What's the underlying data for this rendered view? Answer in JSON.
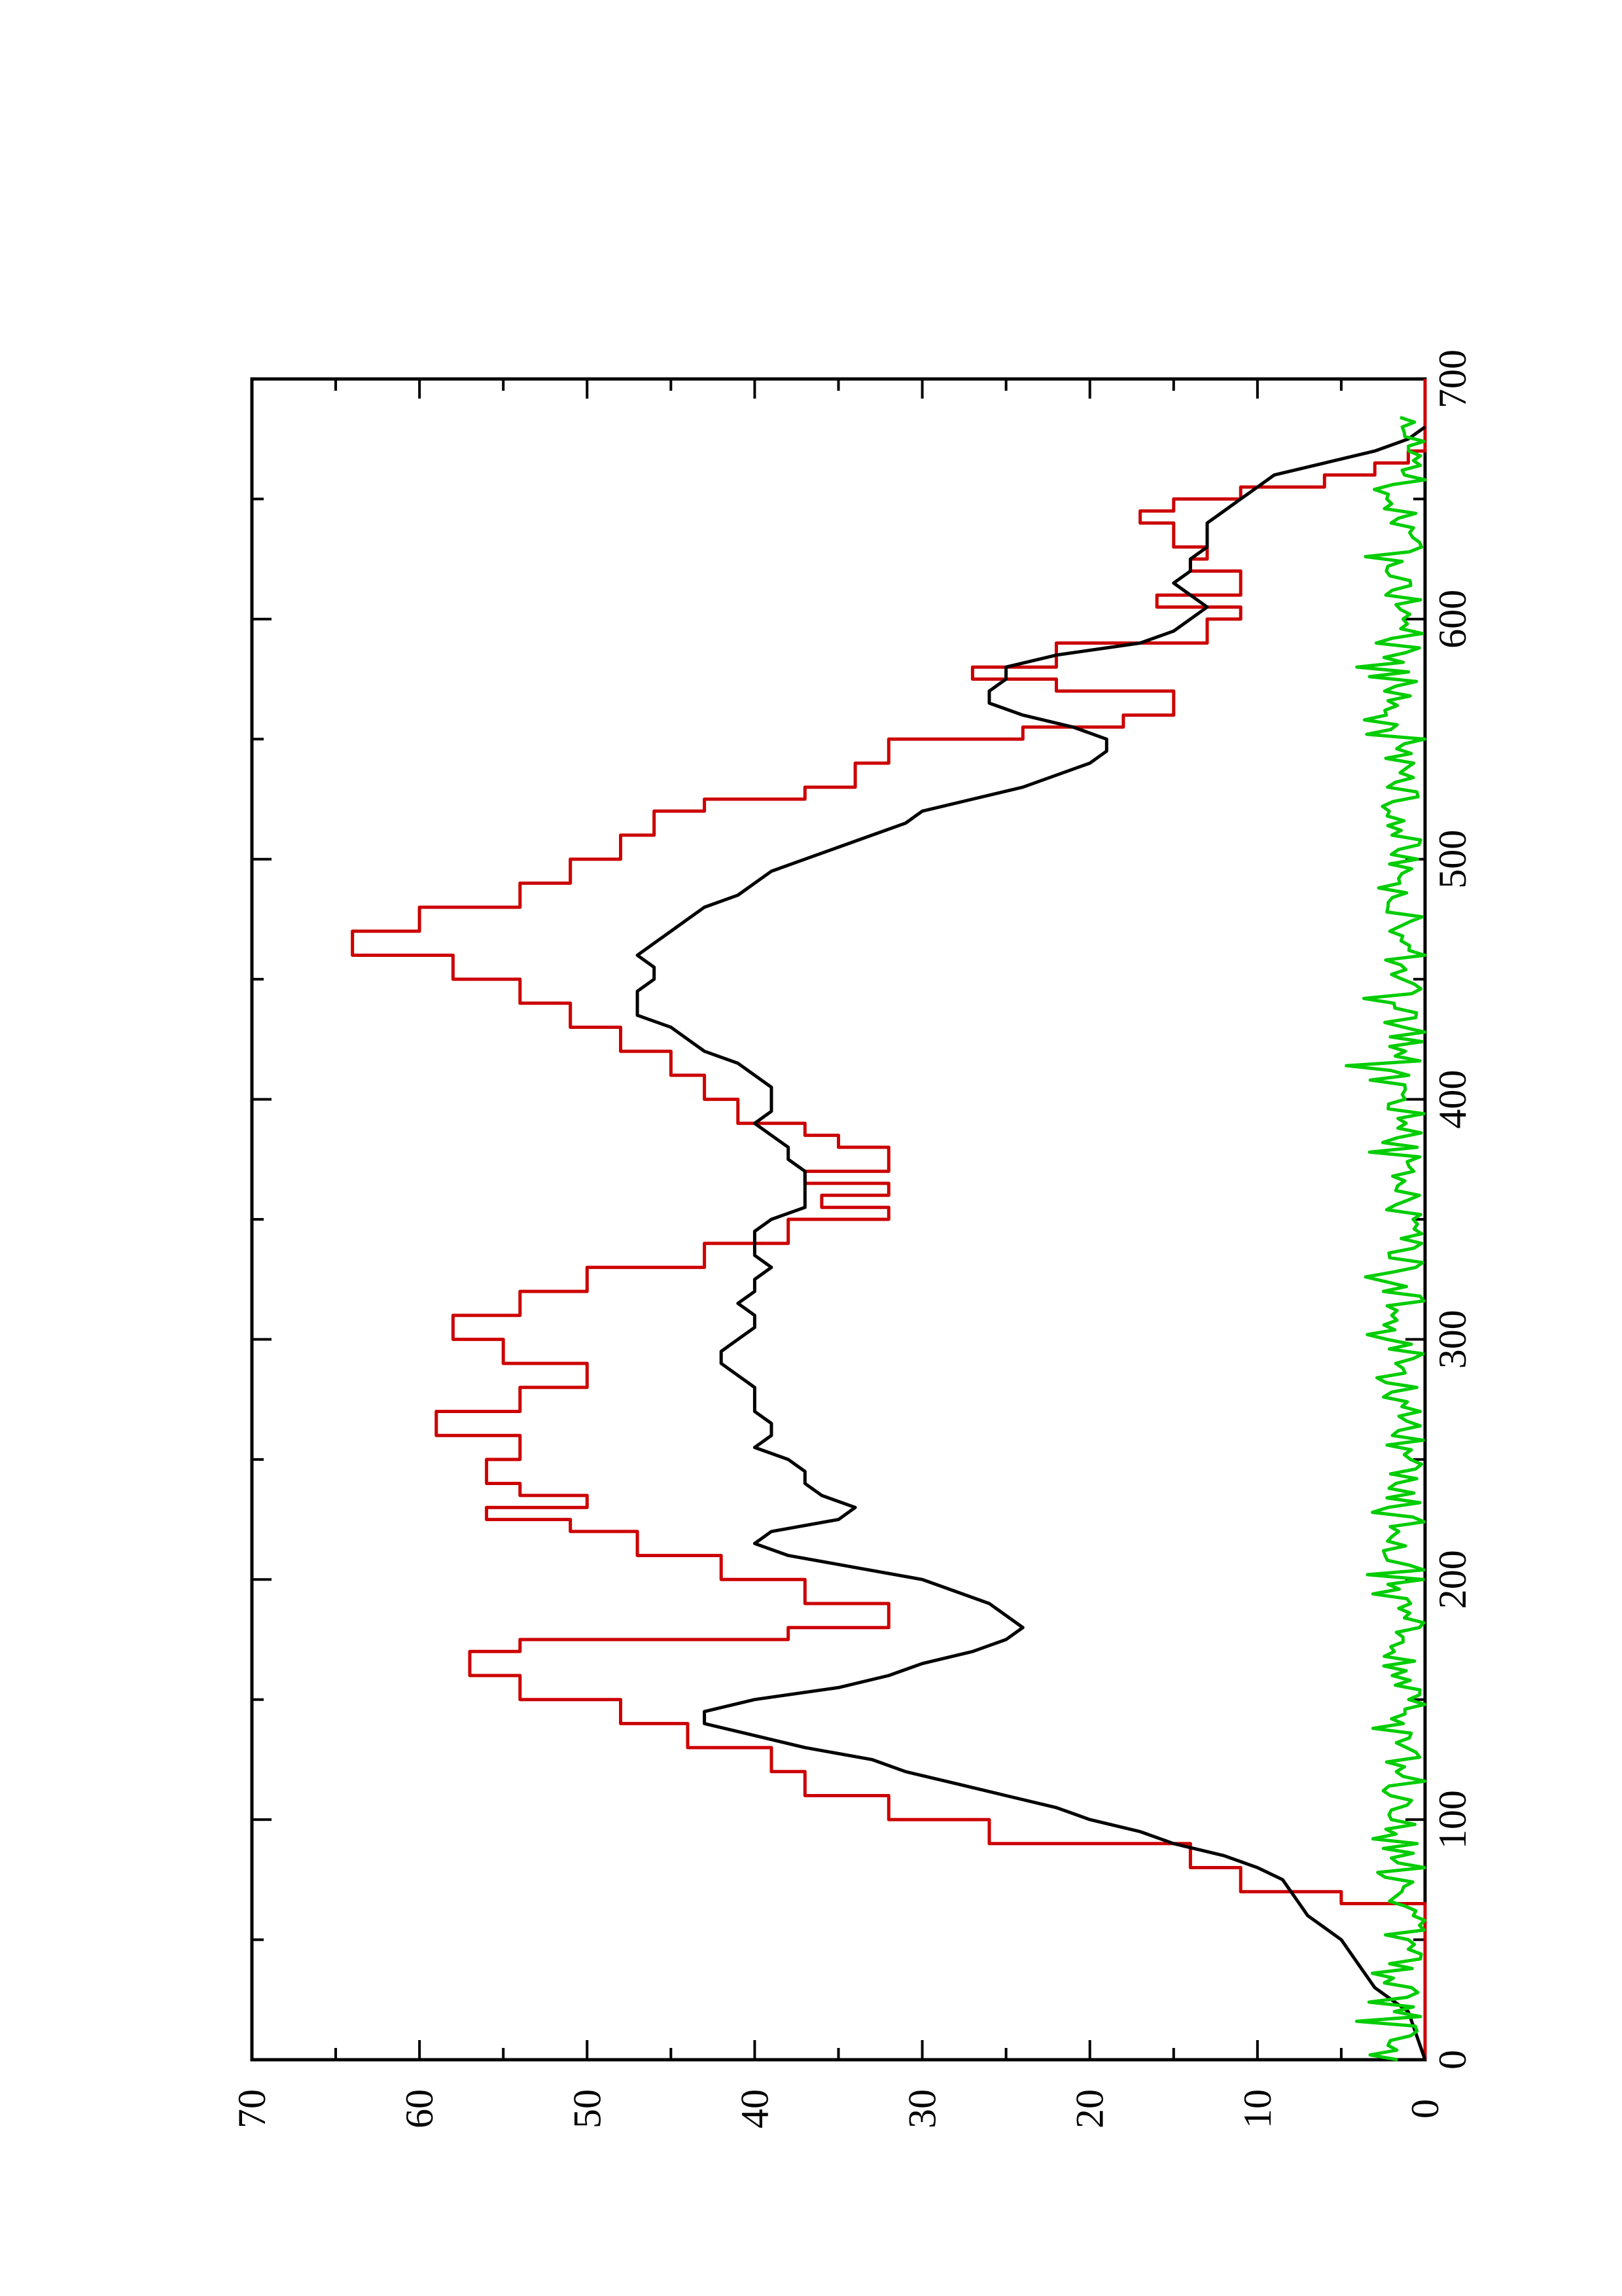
{
  "chart_data": {
    "type": "line",
    "title": "",
    "xlabel": "",
    "ylabel": "",
    "orientation": "rotated-90-ccw",
    "xlim": [
      0,
      700
    ],
    "ylim": [
      0,
      70
    ],
    "x_ticks": [
      "0",
      "100",
      "200",
      "300",
      "400",
      "500",
      "600",
      "700"
    ],
    "y_ticks": [
      "0",
      "10",
      "20",
      "30",
      "40",
      "50",
      "60",
      "70"
    ],
    "x_minor_step": 50,
    "y_minor_step": 5,
    "grid": false,
    "legend": "none",
    "series": [
      {
        "color": "#cc0000",
        "style": "step",
        "x": [
          0,
          60,
          65,
          70,
          80,
          90,
          100,
          110,
          120,
          130,
          140,
          150,
          160,
          170,
          175,
          180,
          190,
          200,
          210,
          220,
          225,
          230,
          235,
          240,
          250,
          260,
          270,
          280,
          290,
          300,
          310,
          320,
          330,
          340,
          350,
          355,
          360,
          365,
          370,
          380,
          385,
          390,
          400,
          410,
          420,
          430,
          440,
          450,
          460,
          470,
          480,
          490,
          500,
          510,
          520,
          525,
          530,
          540,
          550,
          555,
          560,
          570,
          575,
          580,
          590,
          600,
          605,
          610,
          620,
          625,
          630,
          640,
          645,
          650,
          655,
          660,
          665,
          670,
          680,
          700
        ],
        "y": [
          0,
          0,
          5,
          11,
          14,
          26,
          32,
          37,
          39,
          44,
          48,
          54,
          57,
          54,
          38,
          32,
          37,
          42,
          47,
          51,
          56,
          50,
          54,
          56,
          54,
          59,
          54,
          50,
          55,
          58,
          54,
          50,
          43,
          38,
          32,
          36,
          32,
          37,
          32,
          35,
          37,
          41,
          43,
          45,
          48,
          51,
          54,
          58,
          64,
          60,
          54,
          51,
          48,
          46,
          43,
          37,
          34,
          32,
          24,
          18,
          15,
          22,
          27,
          22,
          13,
          11,
          16,
          11,
          14,
          13,
          15,
          17,
          15,
          11,
          6,
          3,
          1,
          0,
          0,
          0
        ]
      },
      {
        "color": "#000000",
        "style": "line",
        "x": [
          0,
          10,
          20,
          25,
          30,
          40,
          50,
          55,
          60,
          65,
          70,
          75,
          80,
          85,
          90,
          95,
          100,
          105,
          110,
          115,
          120,
          125,
          130,
          135,
          140,
          145,
          150,
          155,
          160,
          165,
          170,
          175,
          180,
          185,
          190,
          195,
          200,
          205,
          210,
          215,
          220,
          225,
          230,
          235,
          240,
          245,
          250,
          255,
          260,
          265,
          270,
          275,
          280,
          285,
          290,
          295,
          300,
          305,
          310,
          315,
          320,
          325,
          330,
          335,
          340,
          345,
          350,
          355,
          360,
          365,
          370,
          375,
          380,
          385,
          390,
          395,
          400,
          405,
          410,
          415,
          420,
          425,
          430,
          435,
          440,
          445,
          450,
          455,
          460,
          465,
          470,
          475,
          480,
          485,
          490,
          495,
          500,
          505,
          510,
          515,
          520,
          525,
          530,
          535,
          540,
          545,
          550,
          555,
          560,
          565,
          570,
          575,
          580,
          585,
          590,
          595,
          600,
          605,
          610,
          615,
          620,
          625,
          630,
          635,
          640,
          645,
          650,
          655,
          660,
          665,
          670,
          675,
          680
        ],
        "y": [
          0,
          0.5,
          1,
          2,
          3,
          4,
          5,
          6,
          7,
          7.5,
          8,
          8.5,
          10,
          12,
          15,
          17,
          20,
          22,
          25,
          28,
          31,
          33,
          37,
          40,
          43,
          43,
          40,
          35,
          32,
          30,
          27,
          25,
          24,
          25,
          26,
          28,
          30,
          34,
          38,
          40,
          39,
          35,
          34,
          36,
          37,
          37,
          38,
          40,
          39,
          39,
          40,
          40,
          40,
          41,
          42,
          42,
          41,
          40,
          40,
          41,
          40,
          40,
          39,
          40,
          40,
          40,
          39,
          37,
          37,
          37,
          37,
          38,
          38,
          39,
          40,
          39,
          39,
          39,
          40,
          41,
          43,
          44,
          45,
          47,
          47,
          47,
          46,
          46,
          47,
          46,
          45,
          44,
          43,
          41,
          40,
          39,
          37,
          35,
          33,
          31,
          30,
          27,
          24,
          22,
          20,
          19,
          19,
          21,
          24,
          26,
          26,
          25,
          25,
          22,
          17,
          15,
          14,
          13,
          14,
          15,
          14,
          14,
          13,
          13,
          13,
          12,
          11,
          10,
          9,
          6,
          3,
          1,
          0
        ]
      },
      {
        "color": "#00cc00",
        "style": "line",
        "noise_amplitude": 2.5,
        "description_points": "low-amplitude noise around 0-5 across full x range"
      }
    ]
  }
}
